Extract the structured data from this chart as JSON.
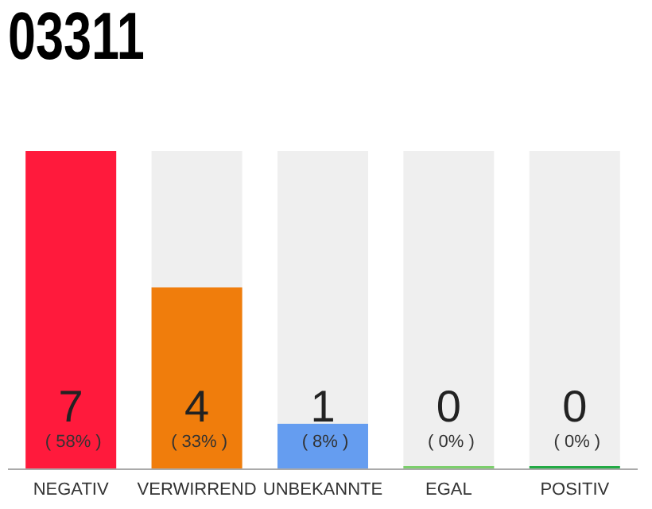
{
  "chart_data": {
    "type": "bar",
    "title": "03311",
    "categories": [
      "NEGATIV",
      "VERWIRREND",
      "UNBEKANNTE",
      "EGAL",
      "POSITIV"
    ],
    "values": [
      7,
      4,
      1,
      0,
      0
    ],
    "colors": [
      "#ff1a3c",
      "#f07d0c",
      "#659df0",
      "#7ccf6c",
      "#22aa44"
    ],
    "value_labels": [
      "7 ( 58% )",
      "4 ( 33% )",
      "1 ( 8% )",
      "0 ( 0% )",
      "0 ( 0% )"
    ],
    "tick_labels": "x"
  }
}
